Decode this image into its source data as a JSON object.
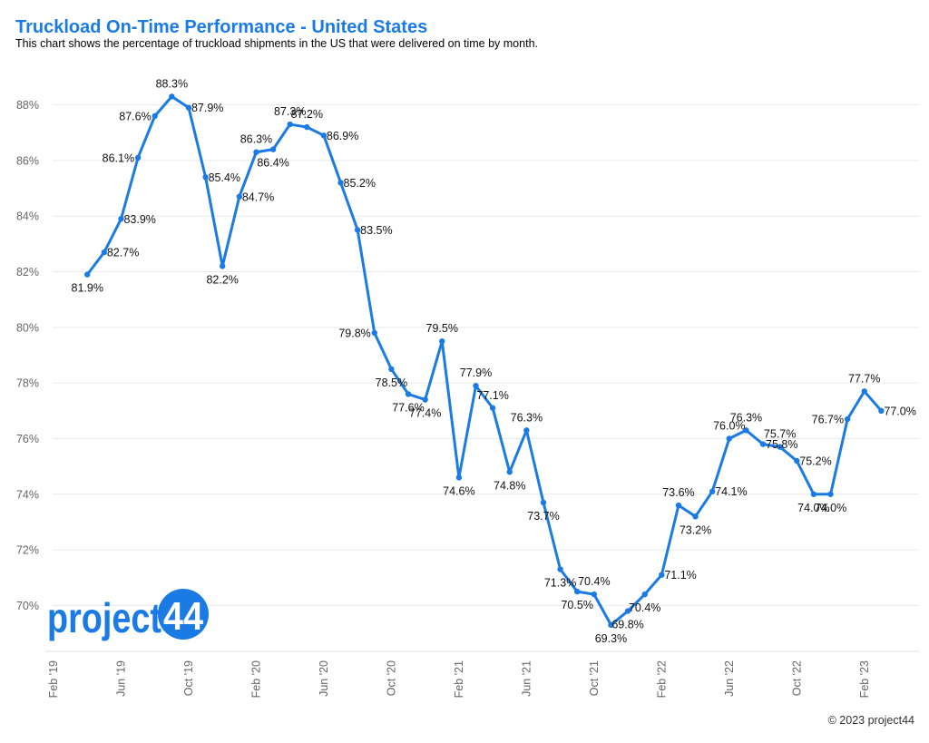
{
  "chart_data": {
    "type": "line",
    "title": "Truckload On-Time Performance - United States",
    "subtitle": "This chart shows the percentage of truckload shipments in the US that were delivered on time by month.",
    "xlabel": "",
    "ylabel": "",
    "x": [
      "2019-02",
      "2019-03",
      "2019-04",
      "2019-05",
      "2019-06",
      "2019-07",
      "2019-08",
      "2019-09",
      "2019-10",
      "2019-11",
      "2019-12",
      "2020-01",
      "2020-02",
      "2020-03",
      "2020-04",
      "2020-05",
      "2020-06",
      "2020-07",
      "2020-08",
      "2020-09",
      "2020-10",
      "2020-11",
      "2020-12",
      "2021-01",
      "2021-02",
      "2021-03",
      "2021-04",
      "2021-05",
      "2021-06",
      "2021-07",
      "2021-08",
      "2021-09",
      "2021-10",
      "2021-11",
      "2021-12",
      "2022-01",
      "2022-02",
      "2022-03",
      "2022-04",
      "2022-05",
      "2022-06",
      "2022-07",
      "2022-08",
      "2022-09",
      "2022-10",
      "2022-11",
      "2022-12",
      "2023-01",
      "2023-02",
      "2023-03"
    ],
    "series": [
      {
        "values": [
          null,
          null,
          81.9,
          82.7,
          83.9,
          86.1,
          87.6,
          88.3,
          87.9,
          85.4,
          82.2,
          84.7,
          86.3,
          86.4,
          87.3,
          87.2,
          86.9,
          85.2,
          83.5,
          79.8,
          78.5,
          77.6,
          77.4,
          79.5,
          74.6,
          77.9,
          77.1,
          74.8,
          76.3,
          73.7,
          71.3,
          70.5,
          70.4,
          69.3,
          69.8,
          70.4,
          71.1,
          73.6,
          73.2,
          74.1,
          76.0,
          76.3,
          75.8,
          75.7,
          75.2,
          74.0,
          74.0,
          76.7,
          77.7,
          77.0
        ],
        "labels": [
          null,
          null,
          "81.9%",
          "82.7%",
          "83.9%",
          "86.1%",
          "87.6%",
          "88.3%",
          "87.9%",
          "85.4%",
          "82.2%",
          "84.7%",
          "86.3%",
          "86.4%",
          "87.3%",
          "87.2%",
          "86.9%",
          "85.2%",
          "83.5%",
          "79.8%",
          "78.5%",
          "77.6%",
          "77.4%",
          "79.5%",
          "74.6%",
          "77.9%",
          "77.1%",
          "74.8%",
          "76.3%",
          "73.7%",
          "71.3%",
          "70.5%",
          "70.4%",
          "69.3%",
          "69.8%",
          "70.4%",
          "71.1%",
          "73.6%",
          "73.2%",
          "74.1%",
          "76.0%",
          "76.3%",
          "75.8%",
          "75.7%",
          "75.2%",
          "74.0%",
          "74.0%",
          "76.7%",
          "77.7%",
          "77.0%"
        ]
      }
    ],
    "x_ticks": [
      {
        "x": "2019-02",
        "label": "Feb '19"
      },
      {
        "x": "2019-06",
        "label": "Jun '19"
      },
      {
        "x": "2019-10",
        "label": "Oct '19"
      },
      {
        "x": "2020-02",
        "label": "Feb '20"
      },
      {
        "x": "2020-06",
        "label": "Jun '20"
      },
      {
        "x": "2020-10",
        "label": "Oct '20"
      },
      {
        "x": "2021-02",
        "label": "Feb '21"
      },
      {
        "x": "2021-06",
        "label": "Jun '21"
      },
      {
        "x": "2021-10",
        "label": "Oct '21"
      },
      {
        "x": "2022-02",
        "label": "Feb '22"
      },
      {
        "x": "2022-06",
        "label": "Jun '22"
      },
      {
        "x": "2022-10",
        "label": "Oct '22"
      },
      {
        "x": "2023-02",
        "label": "Feb '23"
      }
    ],
    "y_ticks": [
      {
        "value": 70,
        "label": "70%"
      },
      {
        "value": 72,
        "label": "72%"
      },
      {
        "value": 74,
        "label": "74%"
      },
      {
        "value": 76,
        "label": "76%"
      },
      {
        "value": 78,
        "label": "78%"
      },
      {
        "value": 80,
        "label": "80%"
      },
      {
        "value": 82,
        "label": "82%"
      },
      {
        "value": 84,
        "label": "84%"
      },
      {
        "value": 86,
        "label": "86%"
      },
      {
        "value": 88,
        "label": "88%"
      }
    ],
    "ylim": [
      68.35,
      88.9
    ],
    "grid": true,
    "legend": "none",
    "line_color": "#1a7be5"
  },
  "logo": {
    "text": "project",
    "badge": "44",
    "color": "#1a7be5"
  },
  "footer": {
    "copyright": "© 2023 project44"
  }
}
